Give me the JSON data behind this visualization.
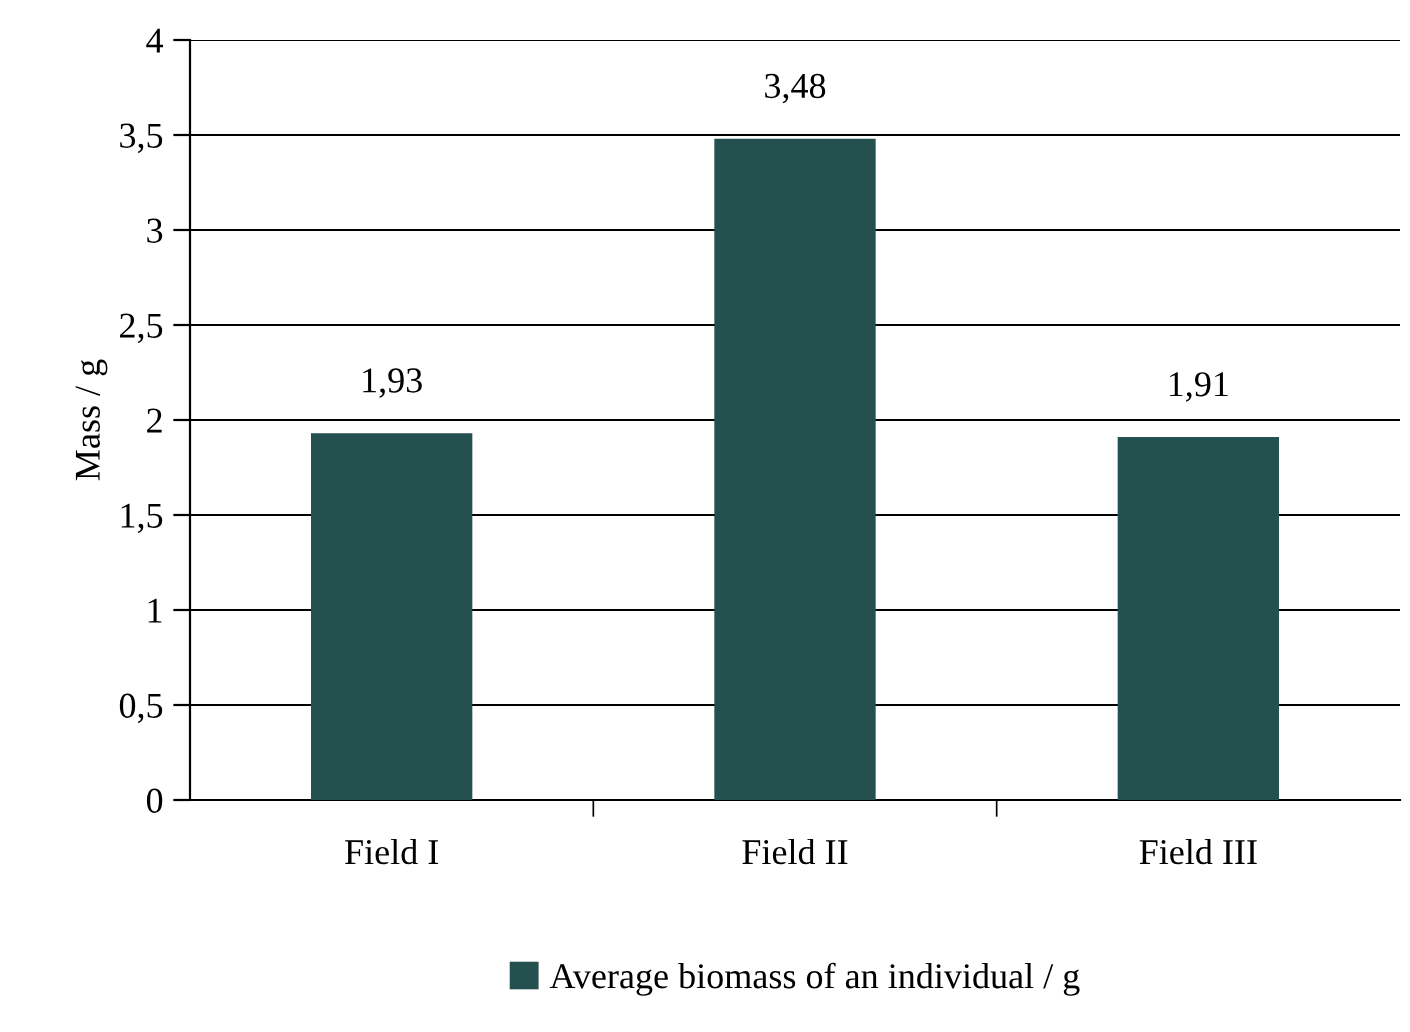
{
  "chart_data": {
    "type": "bar",
    "ylabel": "Mass / g",
    "categories": [
      "Field I",
      "Field II",
      "Field III"
    ],
    "series": [
      {
        "name": "Average biomass of an individual / g",
        "color": "#245050",
        "values": [
          1.93,
          3.48,
          1.91
        ],
        "value_labels": [
          "1,93",
          "3,48",
          "1,91"
        ]
      }
    ],
    "ylim": [
      0,
      4
    ],
    "yticks": [
      0,
      {
        "value": 0.5,
        "label": "0,5"
      },
      1,
      {
        "value": 1.5,
        "label": "1,5"
      },
      2,
      {
        "value": 2.5,
        "label": "2,5"
      },
      3,
      {
        "value": 3.5,
        "label": "3,5"
      },
      4
    ],
    "grid": "y",
    "legend": "bottom"
  }
}
